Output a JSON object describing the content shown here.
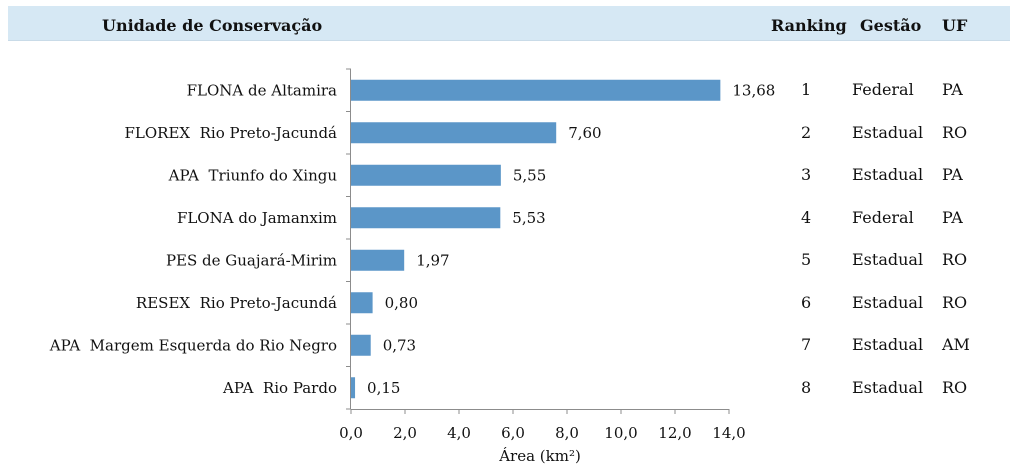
{
  "header": {
    "col_unit": "Unidade de Conservação",
    "col_rank": "Ranking",
    "col_gestao": "Gestão",
    "col_uf": "UF"
  },
  "rows": [
    {
      "ranking": "1",
      "gestao": "Federal",
      "uf": "PA"
    },
    {
      "ranking": "2",
      "gestao": "Estadual",
      "uf": "RO"
    },
    {
      "ranking": "3",
      "gestao": "Estadual",
      "uf": "PA"
    },
    {
      "ranking": "4",
      "gestao": "Federal",
      "uf": "PA"
    },
    {
      "ranking": "5",
      "gestao": "Estadual",
      "uf": "RO"
    },
    {
      "ranking": "6",
      "gestao": "Estadual",
      "uf": "RO"
    },
    {
      "ranking": "7",
      "gestao": "Estadual",
      "uf": "AM"
    },
    {
      "ranking": "8",
      "gestao": "Estadual",
      "uf": "RO"
    }
  ],
  "chart_data": {
    "type": "bar",
    "orientation": "horizontal",
    "categories": [
      "FLONA de Altamira",
      "FLOREX  Rio Preto-Jacundá",
      "APA  Triunfo do Xingu",
      "FLONA do Jamanxim",
      "PES de Guajará-Mirim",
      "RESEX  Rio Preto-Jacundá",
      "APA  Margem Esquerda do Rio Negro",
      "APA  Rio Pardo"
    ],
    "values": [
      13.68,
      7.6,
      5.55,
      5.53,
      1.97,
      0.8,
      0.73,
      0.15
    ],
    "value_labels": [
      "13,68",
      "7,60",
      "5,55",
      "5,53",
      "1,97",
      "0,80",
      "0,73",
      "0,15"
    ],
    "xlabel": "Área (km²)",
    "xlim": [
      0,
      14
    ],
    "xticks": [
      "0,0",
      "2,0",
      "4,0",
      "6,0",
      "8,0",
      "10,0",
      "12,0",
      "14,0"
    ],
    "bar_color": "#5b96c8",
    "grid": false
  }
}
